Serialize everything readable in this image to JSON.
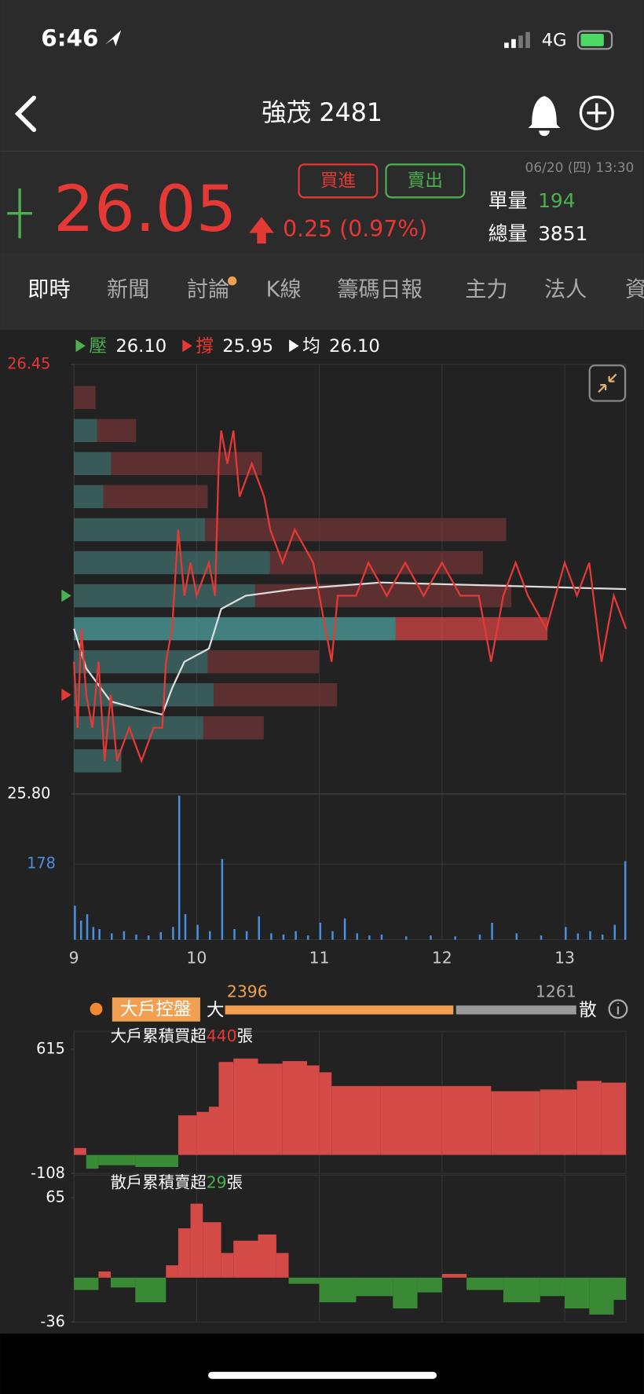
{
  "status_bar": {
    "time": "6:46",
    "network": "4G"
  },
  "header": {
    "title": "強茂 2481"
  },
  "quote": {
    "price": 26.05,
    "change": "0.25 (0.97%)",
    "buy": "買進",
    "sell": "賣出",
    "datetime": "06/20 (四) 13:30",
    "tick_volume_label": "單量",
    "tick_volume": 194,
    "total_volume_label": "總量",
    "total_volume": 3851
  },
  "tabs": [
    "即時",
    "新聞",
    "討論",
    "K線",
    "籌碼日報",
    "主力",
    "法人",
    "資"
  ],
  "control": {
    "label": "大戶控盤",
    "big_label": "大",
    "big": 2396,
    "small_label": "散",
    "small": 1261
  },
  "chart_data": [
    {
      "type": "line",
      "legend": [
        {
          "name": "壓",
          "value": 26.1,
          "label": "26.10",
          "color": "#4caf50"
        },
        {
          "name": "撐",
          "value": 25.95,
          "label": "25.95",
          "color": "#e53935"
        },
        {
          "name": "均",
          "value": 26.1,
          "label": "26.10",
          "color": "#ffffff"
        }
      ],
      "ylim": [
        25.8,
        26.45
      ],
      "yticks": [
        {
          "value": 25.8,
          "label": "25.80"
        },
        26.45
      ],
      "xlim": [
        9,
        13.5
      ],
      "series": [
        {
          "color": "#e53935",
          "x": [
            9.0,
            9.03,
            9.06,
            9.1,
            9.15,
            9.2,
            9.25,
            9.3,
            9.35,
            9.45,
            9.55,
            9.65,
            9.72,
            9.75,
            9.8,
            9.85,
            9.9,
            9.95,
            10.0,
            10.1,
            10.15,
            10.18,
            10.2,
            10.25,
            10.3,
            10.35,
            10.45,
            10.55,
            10.6,
            10.7,
            10.8,
            10.95,
            11.05,
            11.1,
            11.15,
            11.3,
            11.4,
            11.55,
            11.7,
            11.85,
            12.0,
            12.15,
            12.3,
            12.4,
            12.5,
            12.6,
            12.7,
            12.85,
            13.0,
            13.1,
            13.2,
            13.3,
            13.4,
            13.5
          ],
          "values": [
            26.0,
            25.9,
            26.05,
            25.95,
            25.9,
            26.0,
            25.85,
            25.95,
            25.85,
            25.9,
            25.85,
            25.9,
            25.9,
            26.0,
            26.05,
            26.2,
            26.1,
            26.15,
            26.1,
            26.15,
            26.1,
            26.3,
            26.35,
            26.3,
            26.35,
            26.25,
            26.3,
            26.25,
            26.2,
            26.15,
            26.2,
            26.15,
            26.05,
            26.0,
            26.1,
            26.1,
            26.15,
            26.1,
            26.15,
            26.1,
            26.15,
            26.1,
            26.1,
            26.0,
            26.1,
            26.15,
            26.1,
            26.05,
            26.15,
            26.1,
            26.15,
            26.0,
            26.1,
            26.05
          ]
        },
        {
          "color": "#dddddd",
          "x": [
            9.0,
            9.1,
            9.3,
            9.5,
            9.72,
            9.8,
            9.9,
            10.1,
            10.2,
            10.4,
            10.8,
            11.5,
            13.5
          ],
          "values": [
            26.05,
            25.99,
            25.94,
            25.93,
            25.92,
            25.96,
            26.0,
            26.02,
            26.08,
            26.1,
            26.11,
            26.12,
            26.11
          ]
        }
      ],
      "profile": {
        "prices": [
          26.4,
          26.35,
          26.3,
          26.25,
          26.2,
          26.15,
          26.1,
          26.05,
          26.0,
          25.95,
          25.9,
          25.85
        ],
        "buy": [
          0,
          27,
          43,
          34,
          152,
          227,
          210,
          373,
          155,
          162,
          150,
          55
        ],
        "sell": [
          25,
          45,
          175,
          121,
          349,
          247,
          297,
          176,
          129,
          143,
          70,
          0
        ],
        "xlim": [
          0,
          640
        ],
        "buy_color": "#3e6a68",
        "sell_color": "#6b3434"
      }
    },
    {
      "type": "bar",
      "color": "#4a90e2",
      "ylim": [
        0,
        339
      ],
      "yticks": [
        178
      ],
      "xlim": [
        9,
        13.5
      ],
      "xticks": [
        9,
        10,
        11,
        12,
        13
      ],
      "x": [
        9.0,
        9.05,
        9.1,
        9.15,
        9.2,
        9.3,
        9.4,
        9.5,
        9.6,
        9.7,
        9.8,
        9.85,
        9.9,
        10.0,
        10.1,
        10.2,
        10.3,
        10.4,
        10.5,
        10.6,
        10.7,
        10.8,
        10.9,
        11.0,
        11.1,
        11.2,
        11.3,
        11.4,
        11.5,
        11.7,
        11.9,
        12.1,
        12.3,
        12.4,
        12.6,
        12.8,
        13.0,
        13.1,
        13.2,
        13.3,
        13.4,
        13.5
      ],
      "values": [
        80,
        45,
        60,
        30,
        25,
        15,
        20,
        12,
        10,
        18,
        30,
        339,
        60,
        35,
        20,
        190,
        25,
        20,
        55,
        15,
        12,
        20,
        10,
        40,
        20,
        50,
        15,
        10,
        12,
        8,
        10,
        8,
        12,
        40,
        15,
        10,
        30,
        15,
        20,
        12,
        35,
        185
      ]
    },
    {
      "type": "bar",
      "title": "大戶累積買超",
      "title_value": 440,
      "title_unit": "張",
      "ylim": [
        -108,
        615
      ],
      "yticks": [
        -108,
        615
      ],
      "xlim": [
        9,
        13.5
      ],
      "positive_color": "#d44a47",
      "negative_color": "#3a8a35",
      "x": [
        9.0,
        9.1,
        9.2,
        9.5,
        9.85,
        10.0,
        10.1,
        10.18,
        10.3,
        10.5,
        10.7,
        10.9,
        11.0,
        11.1,
        11.5,
        12.0,
        12.4,
        12.8,
        13.1,
        13.3
      ],
      "values": [
        40,
        -80,
        -60,
        -70,
        230,
        250,
        280,
        540,
        560,
        530,
        545,
        520,
        480,
        400,
        400,
        400,
        370,
        380,
        430,
        420
      ]
    },
    {
      "type": "bar",
      "title": "散戶累積賣超",
      "title_value": 29,
      "title_unit": "張",
      "ylim": [
        -36,
        65
      ],
      "yticks": [
        -36,
        65
      ],
      "xlim": [
        9,
        13.5
      ],
      "positive_color": "#d44a47",
      "negative_color": "#3a8a35",
      "x": [
        9.0,
        9.2,
        9.3,
        9.5,
        9.75,
        9.85,
        9.95,
        10.05,
        10.2,
        10.3,
        10.5,
        10.65,
        10.75,
        11.0,
        11.3,
        11.6,
        11.8,
        12.0,
        12.2,
        12.5,
        12.8,
        13.0,
        13.2,
        13.4
      ],
      "values": [
        -10,
        5,
        -8,
        -20,
        10,
        40,
        60,
        45,
        20,
        30,
        35,
        20,
        -5,
        -20,
        -15,
        -25,
        -12,
        3,
        -10,
        -20,
        -15,
        -25,
        -30,
        -18
      ]
    }
  ]
}
